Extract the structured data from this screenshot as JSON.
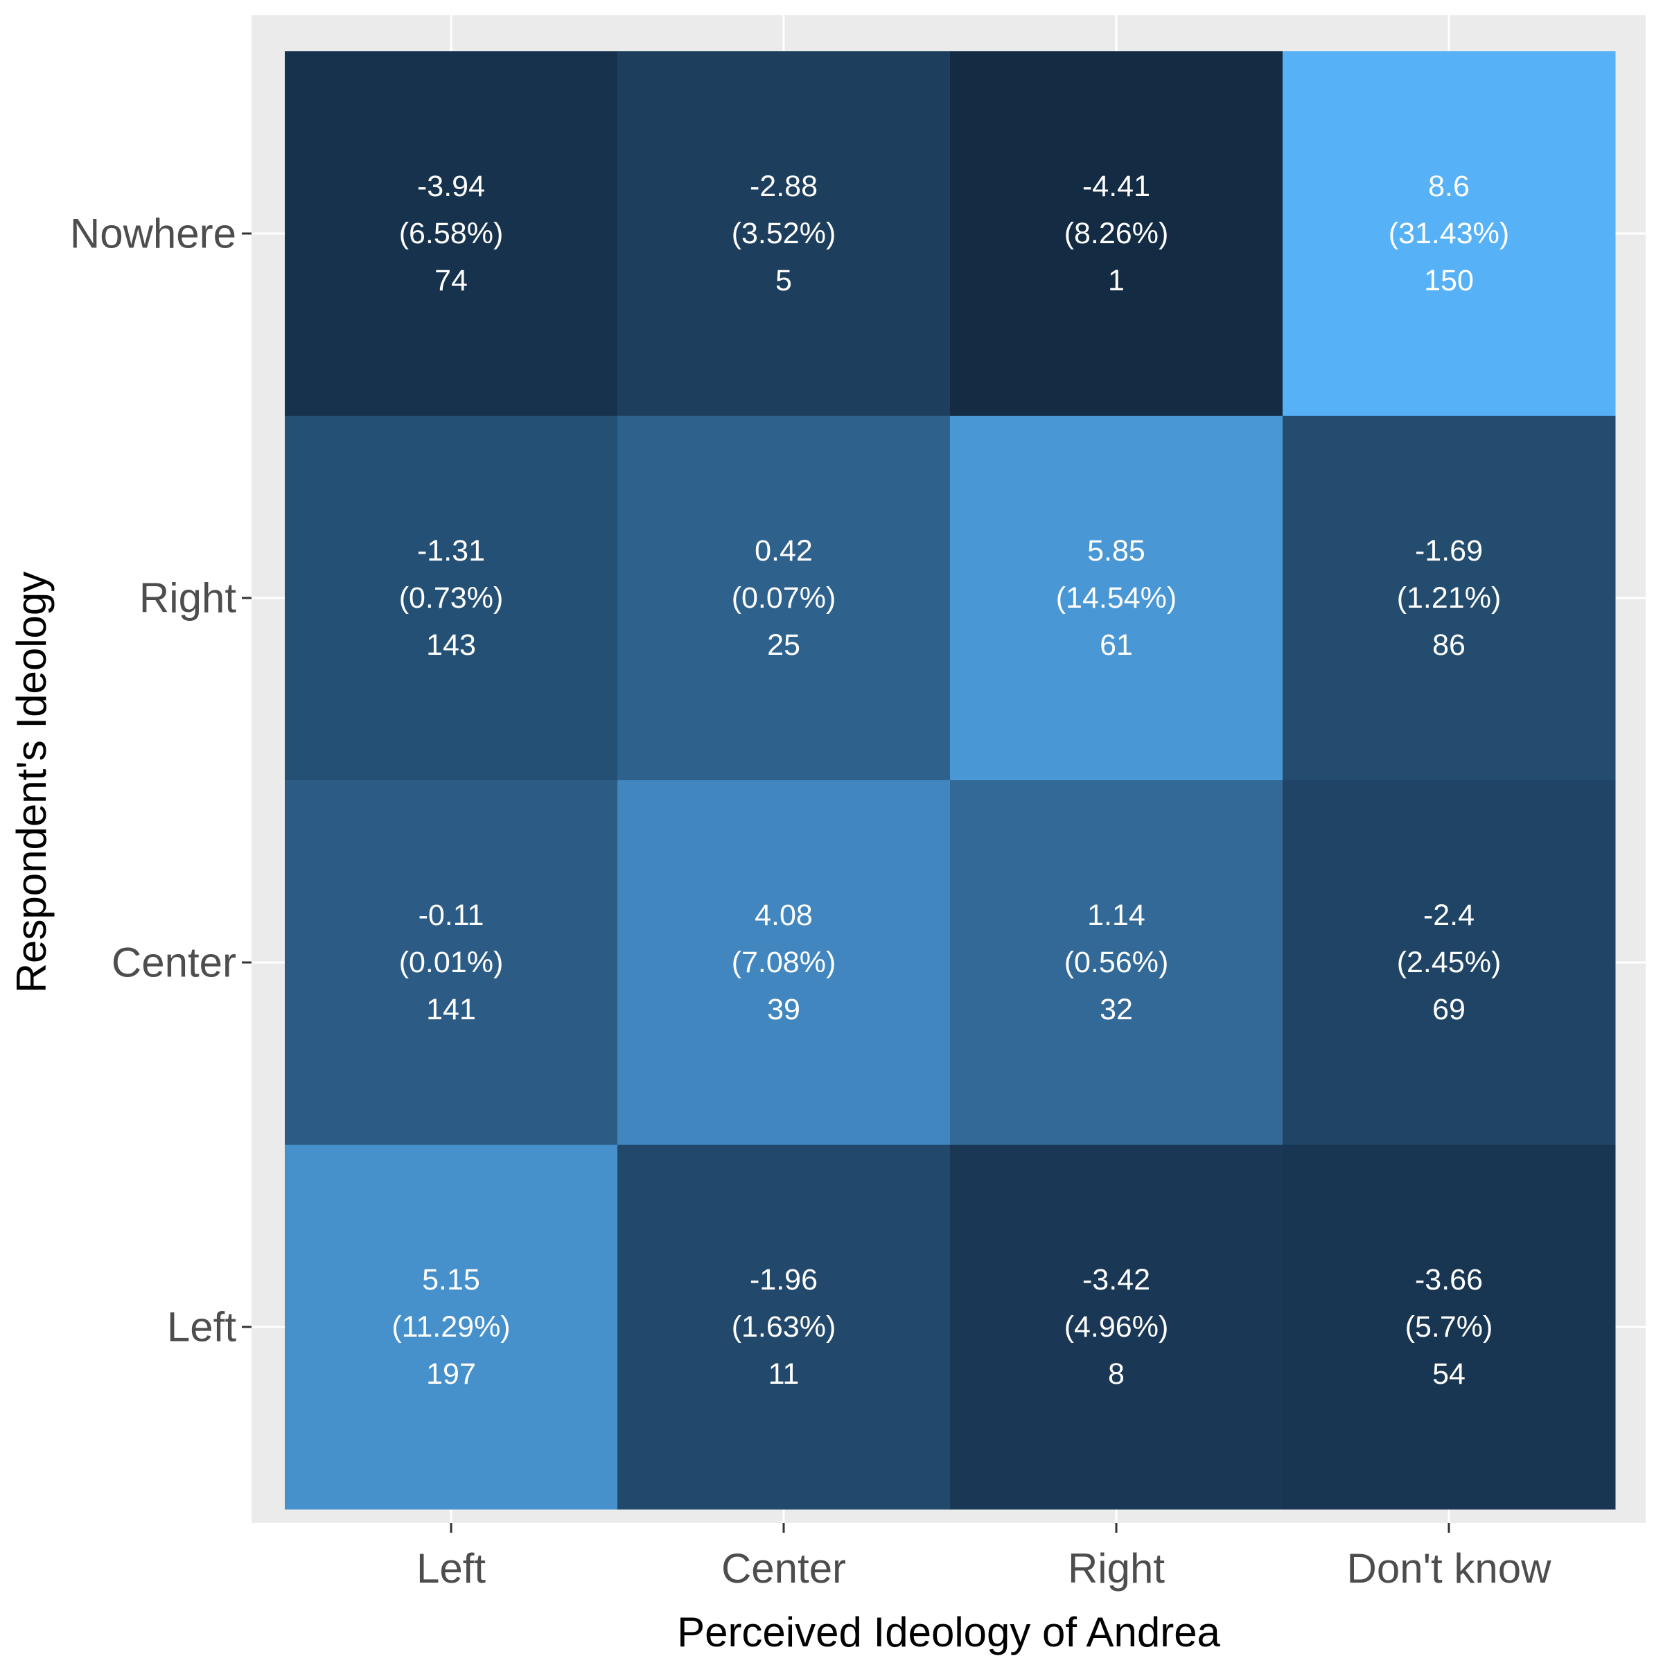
{
  "chart_data": {
    "type": "heatmap",
    "xlabel": "Perceived Ideology of Andrea",
    "ylabel": "Respondent's Ideology",
    "x_categories": [
      "Left",
      "Center",
      "Right",
      "Don't know"
    ],
    "y_categories": [
      "Left",
      "Center",
      "Right",
      "Nowhere"
    ],
    "grid": true,
    "legend": "none",
    "colors": {
      "panel_background": "#ebebeb",
      "grid": "#ffffff",
      "low": "#132b43",
      "high": "#56b1f7",
      "label_text": "#ffffff"
    },
    "fill_range": [
      -4.41,
      8.6
    ],
    "cells": [
      {
        "x": "Left",
        "y": "Nowhere",
        "value": -3.94,
        "percent": "(6.58%)",
        "count": 74
      },
      {
        "x": "Center",
        "y": "Nowhere",
        "value": -2.88,
        "percent": "(3.52%)",
        "count": 5
      },
      {
        "x": "Right",
        "y": "Nowhere",
        "value": -4.41,
        "percent": "(8.26%)",
        "count": 1
      },
      {
        "x": "Don't know",
        "y": "Nowhere",
        "value": 8.6,
        "percent": "(31.43%)",
        "count": 150
      },
      {
        "x": "Left",
        "y": "Right",
        "value": -1.31,
        "percent": "(0.73%)",
        "count": 143
      },
      {
        "x": "Center",
        "y": "Right",
        "value": 0.42,
        "percent": "(0.07%)",
        "count": 25
      },
      {
        "x": "Right",
        "y": "Right",
        "value": 5.85,
        "percent": "(14.54%)",
        "count": 61
      },
      {
        "x": "Don't know",
        "y": "Right",
        "value": -1.69,
        "percent": "(1.21%)",
        "count": 86
      },
      {
        "x": "Left",
        "y": "Center",
        "value": -0.11,
        "percent": "(0.01%)",
        "count": 141
      },
      {
        "x": "Center",
        "y": "Center",
        "value": 4.08,
        "percent": "(7.08%)",
        "count": 39
      },
      {
        "x": "Right",
        "y": "Center",
        "value": 1.14,
        "percent": "(0.56%)",
        "count": 32
      },
      {
        "x": "Don't know",
        "y": "Center",
        "value": -2.4,
        "percent": "(2.45%)",
        "count": 69
      },
      {
        "x": "Left",
        "y": "Left",
        "value": 5.15,
        "percent": "(11.29%)",
        "count": 197
      },
      {
        "x": "Center",
        "y": "Left",
        "value": -1.96,
        "percent": "(1.63%)",
        "count": 11
      },
      {
        "x": "Right",
        "y": "Left",
        "value": -3.42,
        "percent": "(4.96%)",
        "count": 8
      },
      {
        "x": "Don't know",
        "y": "Left",
        "value": -3.66,
        "percent": "(5.7%)",
        "count": 54
      }
    ]
  }
}
